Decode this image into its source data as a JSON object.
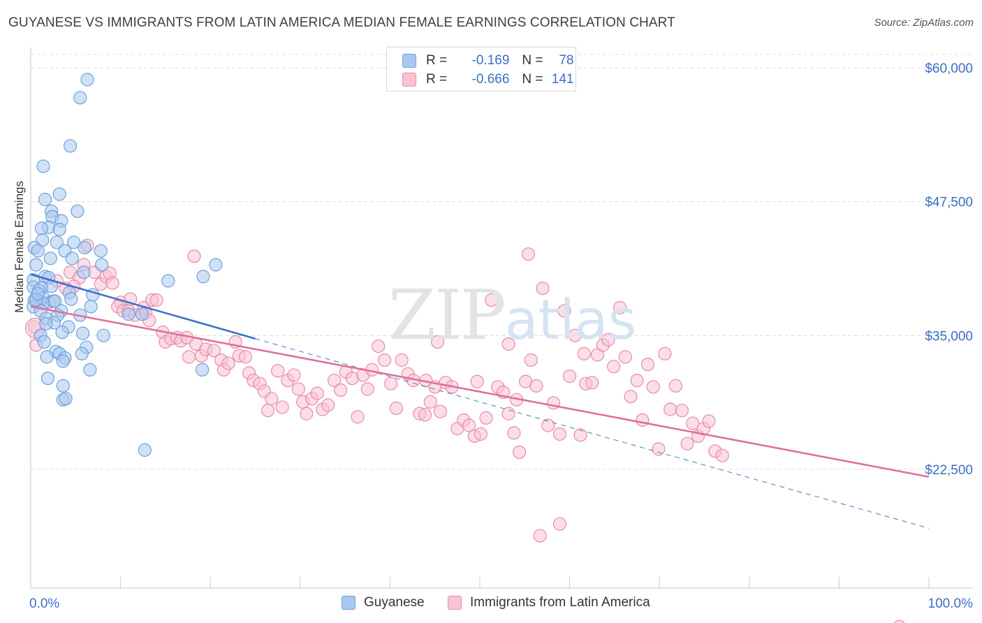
{
  "title": "GUYANESE VS IMMIGRANTS FROM LATIN AMERICA MEDIAN FEMALE EARNINGS CORRELATION CHART",
  "source": "Source: ZipAtlas.com",
  "watermark": {
    "zip": "ZIP",
    "atlas": "atlas"
  },
  "legend": {
    "rows": [
      {
        "r_label": "R =",
        "r_value": "-0.169",
        "n_label": "N =",
        "n_value": "78",
        "color": "#a9c8f0",
        "border": "#6d9fdc"
      },
      {
        "r_label": "R =",
        "r_value": "-0.666",
        "n_label": "N =",
        "n_value": "141",
        "color": "#f8c3d4",
        "border": "#e88aa8"
      }
    ]
  },
  "bottom_legend": {
    "series1": "Guyanese",
    "series2": "Immigrants from Latin America"
  },
  "colors": {
    "blue_fill": "#a9c8f0",
    "blue_stroke": "#6d9fdc",
    "blue_line": "#3a72c9",
    "pink_fill": "#f8c3d4",
    "pink_stroke": "#e88aa8",
    "pink_line": "#e0709a",
    "grid": "#dcdcdc",
    "axis_text": "#3a6fc4"
  },
  "chart_data": {
    "type": "scatter",
    "title": "GUYANESE VS IMMIGRANTS FROM LATIN AMERICA MEDIAN FEMALE EARNINGS CORRELATION CHART",
    "xlabel": "",
    "ylabel": "Median Female Earnings",
    "xlim": [
      0,
      100
    ],
    "ylim": [
      12000,
      62500
    ],
    "x_tick_labels": [
      "0.0%",
      "100.0%"
    ],
    "y_ticks": [
      22500,
      35000,
      47500,
      60000
    ],
    "y_tick_labels": [
      "$22,500",
      "$35,000",
      "$47,500",
      "$60,000"
    ],
    "grid": "horizontal dashed",
    "legend_position": "top-center",
    "series": [
      {
        "name": "Guyanese",
        "r": -0.169,
        "n": 78,
        "trend": {
          "x0": 0,
          "y0": 40700,
          "x1": 25,
          "y1": 34700,
          "dashed_to_x": 100,
          "dashed_to_y": 17000
        },
        "points": [
          [
            6.3,
            58900
          ],
          [
            5.5,
            57200
          ],
          [
            4.4,
            52700
          ],
          [
            1.4,
            50800
          ],
          [
            3.2,
            48200
          ],
          [
            1.6,
            47700
          ],
          [
            2.3,
            46600
          ],
          [
            5.2,
            46600
          ],
          [
            2.4,
            46100
          ],
          [
            3.4,
            45700
          ],
          [
            2.0,
            45100
          ],
          [
            1.2,
            45000
          ],
          [
            3.2,
            44900
          ],
          [
            1.3,
            43900
          ],
          [
            2.9,
            43700
          ],
          [
            4.8,
            43700
          ],
          [
            0.4,
            43200
          ],
          [
            6.0,
            43200
          ],
          [
            0.8,
            42900
          ],
          [
            3.8,
            42900
          ],
          [
            7.8,
            42900
          ],
          [
            2.2,
            42200
          ],
          [
            4.6,
            42200
          ],
          [
            7.9,
            41600
          ],
          [
            0.6,
            41600
          ],
          [
            20.6,
            41600
          ],
          [
            5.9,
            40900
          ],
          [
            1.6,
            40500
          ],
          [
            2.0,
            40400
          ],
          [
            0.3,
            40200
          ],
          [
            15.3,
            40100
          ],
          [
            19.2,
            40500
          ],
          [
            2.3,
            39600
          ],
          [
            0.3,
            39500
          ],
          [
            1.2,
            39400
          ],
          [
            0.9,
            39200
          ],
          [
            4.3,
            39000
          ],
          [
            6.9,
            38800
          ],
          [
            1.4,
            38500
          ],
          [
            0.4,
            38300
          ],
          [
            2.5,
            38200
          ],
          [
            1.0,
            38200
          ],
          [
            1.4,
            38000
          ],
          [
            4.5,
            38400
          ],
          [
            6.7,
            37700
          ],
          [
            0.3,
            37700
          ],
          [
            1.1,
            37300
          ],
          [
            3.4,
            37300
          ],
          [
            3.0,
            36900
          ],
          [
            5.5,
            36900
          ],
          [
            10.9,
            37000
          ],
          [
            12.4,
            37000
          ],
          [
            1.7,
            36600
          ],
          [
            2.6,
            36200
          ],
          [
            4.2,
            35800
          ],
          [
            3.5,
            35300
          ],
          [
            5.8,
            35200
          ],
          [
            8.1,
            35000
          ],
          [
            1.1,
            35000
          ],
          [
            1.5,
            34400
          ],
          [
            6.2,
            33900
          ],
          [
            2.8,
            33500
          ],
          [
            3.2,
            33300
          ],
          [
            5.7,
            33300
          ],
          [
            1.8,
            33000
          ],
          [
            3.8,
            32900
          ],
          [
            3.6,
            32600
          ],
          [
            19.1,
            31800
          ],
          [
            6.6,
            31800
          ],
          [
            1.9,
            31000
          ],
          [
            3.6,
            30300
          ],
          [
            3.6,
            29000
          ],
          [
            3.9,
            29100
          ],
          [
            12.7,
            24300
          ],
          [
            0.6,
            38300
          ],
          [
            0.8,
            38900
          ],
          [
            1.7,
            36100
          ],
          [
            2.7,
            38200
          ]
        ]
      },
      {
        "name": "Immigrants from Latin America",
        "r": -0.666,
        "n": 141,
        "trend": {
          "x0": 0,
          "y0": 37700,
          "x1": 100,
          "y1": 21800
        },
        "points": [
          [
            0.4,
            35800
          ],
          [
            0.6,
            34100
          ],
          [
            2.9,
            40100
          ],
          [
            4.4,
            40900
          ],
          [
            5.4,
            40400
          ],
          [
            6.3,
            43400
          ],
          [
            5.9,
            41600
          ],
          [
            7.1,
            40900
          ],
          [
            7.8,
            39800
          ],
          [
            8.4,
            40500
          ],
          [
            8.8,
            40800
          ],
          [
            9.1,
            39900
          ],
          [
            4.8,
            39600
          ],
          [
            3.9,
            39400
          ],
          [
            2.1,
            38100
          ],
          [
            10.0,
            38100
          ],
          [
            9.7,
            37700
          ],
          [
            10.3,
            37300
          ],
          [
            10.9,
            37300
          ],
          [
            11.1,
            38400
          ],
          [
            11.6,
            36900
          ],
          [
            12.6,
            37600
          ],
          [
            12.8,
            37100
          ],
          [
            13.2,
            36400
          ],
          [
            13.5,
            38300
          ],
          [
            14.0,
            38300
          ],
          [
            14.7,
            35300
          ],
          [
            15.0,
            34400
          ],
          [
            15.6,
            34700
          ],
          [
            16.3,
            34800
          ],
          [
            16.7,
            34500
          ],
          [
            17.4,
            34800
          ],
          [
            17.6,
            33000
          ],
          [
            18.4,
            34200
          ],
          [
            19.0,
            33100
          ],
          [
            19.5,
            33700
          ],
          [
            20.4,
            33600
          ],
          [
            21.2,
            32700
          ],
          [
            21.5,
            31800
          ],
          [
            22.0,
            32400
          ],
          [
            22.8,
            34400
          ],
          [
            23.2,
            33100
          ],
          [
            23.9,
            33000
          ],
          [
            24.3,
            31500
          ],
          [
            24.8,
            30800
          ],
          [
            25.5,
            30500
          ],
          [
            26.0,
            29800
          ],
          [
            26.4,
            28000
          ],
          [
            26.8,
            29100
          ],
          [
            27.5,
            31700
          ],
          [
            28.0,
            28300
          ],
          [
            28.6,
            30800
          ],
          [
            29.3,
            31300
          ],
          [
            29.8,
            30000
          ],
          [
            30.3,
            28800
          ],
          [
            30.7,
            27700
          ],
          [
            31.3,
            29100
          ],
          [
            31.9,
            29600
          ],
          [
            32.5,
            28100
          ],
          [
            33.1,
            28500
          ],
          [
            33.8,
            30800
          ],
          [
            34.5,
            29900
          ],
          [
            35.1,
            31600
          ],
          [
            35.8,
            31000
          ],
          [
            36.4,
            27400
          ],
          [
            37.0,
            31300
          ],
          [
            37.5,
            30000
          ],
          [
            38.0,
            31800
          ],
          [
            38.7,
            34000
          ],
          [
            39.4,
            32700
          ],
          [
            40.1,
            30500
          ],
          [
            40.7,
            28200
          ],
          [
            41.3,
            32700
          ],
          [
            42.0,
            31400
          ],
          [
            42.6,
            30800
          ],
          [
            43.3,
            27700
          ],
          [
            44.0,
            30800
          ],
          [
            44.5,
            28800
          ],
          [
            45.0,
            30200
          ],
          [
            45.6,
            27900
          ],
          [
            46.2,
            30600
          ],
          [
            46.9,
            30200
          ],
          [
            47.5,
            26300
          ],
          [
            48.2,
            27100
          ],
          [
            48.8,
            26600
          ],
          [
            49.4,
            25600
          ],
          [
            50.1,
            25800
          ],
          [
            50.7,
            27300
          ],
          [
            51.3,
            38300
          ],
          [
            52.0,
            30200
          ],
          [
            52.6,
            29700
          ],
          [
            53.2,
            27700
          ],
          [
            53.8,
            25900
          ],
          [
            54.4,
            24100
          ],
          [
            55.1,
            30700
          ],
          [
            55.7,
            32700
          ],
          [
            56.3,
            30300
          ],
          [
            57.0,
            39400
          ],
          [
            57.6,
            26600
          ],
          [
            58.2,
            28700
          ],
          [
            58.9,
            25800
          ],
          [
            59.4,
            37300
          ],
          [
            60.0,
            31200
          ],
          [
            60.6,
            35000
          ],
          [
            61.2,
            25700
          ],
          [
            61.8,
            30500
          ],
          [
            62.5,
            30600
          ],
          [
            63.1,
            33200
          ],
          [
            63.7,
            34100
          ],
          [
            64.3,
            34600
          ],
          [
            64.9,
            32100
          ],
          [
            65.6,
            37600
          ],
          [
            66.2,
            33000
          ],
          [
            66.8,
            29300
          ],
          [
            67.5,
            30800
          ],
          [
            68.1,
            27100
          ],
          [
            68.7,
            32300
          ],
          [
            69.3,
            30200
          ],
          [
            69.9,
            24400
          ],
          [
            70.6,
            33300
          ],
          [
            71.2,
            28100
          ],
          [
            71.8,
            30300
          ],
          [
            72.5,
            28000
          ],
          [
            73.1,
            24900
          ],
          [
            73.7,
            26800
          ],
          [
            74.3,
            25600
          ],
          [
            74.9,
            26300
          ],
          [
            75.5,
            27000
          ],
          [
            76.2,
            24200
          ],
          [
            77.0,
            23800
          ],
          [
            55.4,
            42600
          ],
          [
            53.2,
            34200
          ],
          [
            49.7,
            30700
          ],
          [
            18.2,
            42400
          ],
          [
            43.9,
            27600
          ],
          [
            45.3,
            34400
          ],
          [
            56.7,
            16300
          ],
          [
            58.9,
            17400
          ],
          [
            61.6,
            33300
          ],
          [
            54.1,
            29000
          ],
          [
            96.7,
            7800
          ]
        ]
      }
    ]
  }
}
